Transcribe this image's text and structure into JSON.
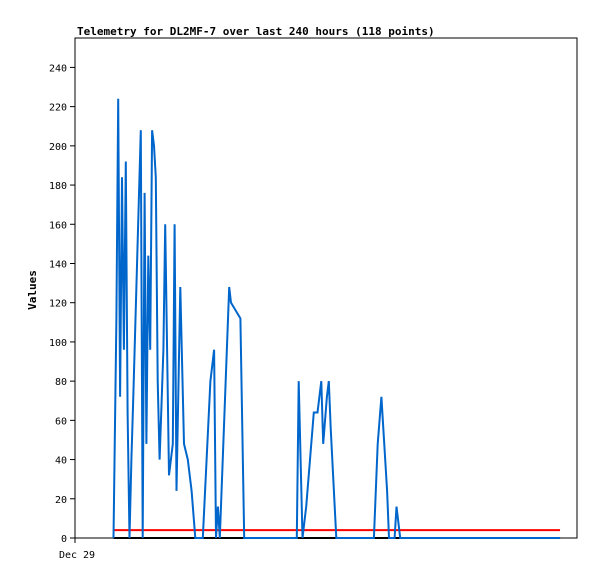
{
  "chart_data": {
    "type": "line",
    "title": "Telemetry for DL2MF-7 over last 240 hours (118 points)",
    "xlabel": "",
    "ylabel": "Values",
    "ylim": [
      0,
      255
    ],
    "yticks": [
      0,
      20,
      40,
      60,
      80,
      100,
      120,
      140,
      160,
      180,
      200,
      220,
      240
    ],
    "xtick_labels": [
      "Dec 29"
    ],
    "grid": false,
    "colors": {
      "series": "#0066cc",
      "threshold": "#ff0000",
      "baseline": "#000000",
      "axis": "#000000"
    },
    "series": [
      {
        "name": "",
        "color": "#0066cc",
        "x": [
          4.1,
          4.4,
          4.6,
          4.8,
          5.0,
          5.2,
          5.4,
          5.6,
          5.8,
          6.0,
          6.2,
          7.0,
          7.2,
          7.4,
          7.6,
          7.8,
          8.0,
          8.2,
          8.4,
          8.6,
          8.8,
          9.0,
          9.4,
          9.6,
          10.0,
          10.4,
          10.6,
          10.8,
          11.2,
          11.6,
          12.0,
          12.4,
          12.8,
          13.2,
          13.6,
          14.4,
          14.8,
          15.0,
          15.2,
          15.4,
          16.4,
          16.6,
          17.6,
          18.0,
          18.4,
          19.0,
          19.4,
          23.6,
          23.8,
          24.2,
          24.6,
          25.0,
          25.4,
          25.6,
          25.8,
          26.0,
          26.2,
          26.4,
          26.8,
          27.0,
          27.2,
          27.8,
          31.6,
          31.8,
          32.2,
          32.6,
          33.0,
          33.2,
          33.4,
          33.6,
          33.8,
          34.0,
          34.2,
          34.6,
          35.0,
          35.4,
          35.8,
          36.2,
          36.4,
          36.6,
          36.8,
          37.2,
          37.6,
          38.0,
          38.4,
          39.6,
          40.0,
          40.4,
          40.8,
          41.0,
          41.2,
          41.6,
          42.0,
          42.4,
          45.0,
          45.2,
          45.6,
          45.8,
          46.0,
          46.2,
          46.4,
          46.6,
          47.0,
          47.2,
          47.4,
          47.6,
          48.0,
          48.4,
          48.8,
          49.0,
          49.2,
          49.4,
          49.6,
          49.8,
          50.2,
          50.6,
          51.0,
          51.6
        ],
        "values": [
          0,
          112,
          224,
          72,
          184,
          96,
          192,
          64,
          0,
          40,
          72,
          208,
          0,
          176,
          48,
          144,
          96,
          208,
          200,
          184,
          80,
          40,
          96,
          160,
          32,
          48,
          160,
          24,
          128,
          48,
          40,
          24,
          0,
          0,
          0,
          80,
          96,
          0,
          16,
          0,
          128,
          120,
          112,
          0,
          0,
          0,
          0,
          0,
          80,
          0,
          16,
          40,
          64,
          64,
          64,
          72,
          80,
          48,
          72,
          80,
          56,
          0,
          0,
          0,
          48,
          72,
          40,
          24,
          0,
          0,
          0,
          0,
          16,
          0,
          0,
          0,
          0,
          0,
          0,
          0,
          0,
          0,
          0,
          0,
          0,
          0,
          0,
          0,
          0,
          0,
          0,
          0,
          0,
          0,
          0,
          0,
          0,
          0,
          0,
          0,
          0,
          0,
          0,
          0,
          0,
          0,
          0,
          0,
          0,
          0,
          0,
          0,
          0,
          0,
          0,
          0,
          0,
          0
        ]
      }
    ],
    "threshold_value": 4,
    "baseline_value": 0
  }
}
